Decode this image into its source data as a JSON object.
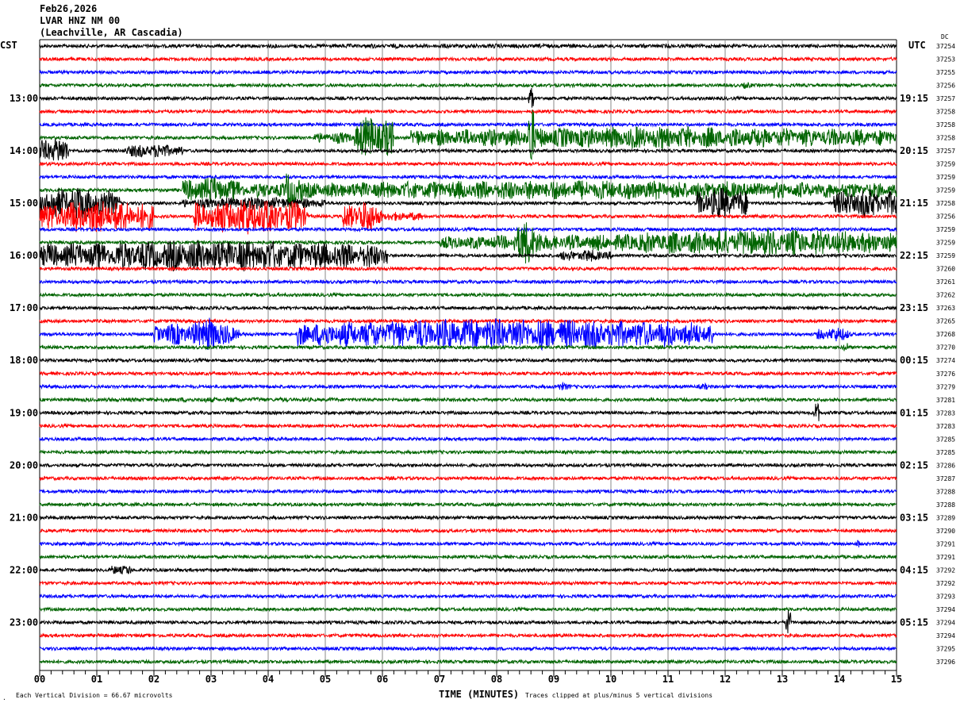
{
  "header": {
    "date": "Feb26,2026",
    "station": "LVAR HNZ NM 00",
    "location": "(Leachville, AR Cascadia)"
  },
  "left_timezone": "CST",
  "right_timezone": "UTC",
  "dc_header": "DC",
  "footer": {
    "scale_note": "Each Vertical Division =   66.67 microvolts",
    "xlabel": "TIME (MINUTES)",
    "clip_note": "Traces clipped at plus/minus 5 vertical divisions",
    "corner_mark": "."
  },
  "chart_data": {
    "type": "line",
    "subtype": "helicorder",
    "xlabel": "TIME (MINUTES)",
    "xlim": [
      0,
      15
    ],
    "x_ticks": [
      "00",
      "01",
      "02",
      "03",
      "04",
      "05",
      "06",
      "07",
      "08",
      "09",
      "10",
      "11",
      "12",
      "13",
      "14",
      "15"
    ],
    "minor_ticks_per_minute": 5,
    "grid": "vertical every minute",
    "trace_colors": [
      "#000000",
      "#ff0000",
      "#0000ff",
      "#006400"
    ],
    "left_hour_labels": [
      {
        "row": 4,
        "label": "13:00"
      },
      {
        "row": 8,
        "label": "14:00"
      },
      {
        "row": 12,
        "label": "15:00"
      },
      {
        "row": 16,
        "label": "16:00"
      },
      {
        "row": 20,
        "label": "17:00"
      },
      {
        "row": 24,
        "label": "18:00"
      },
      {
        "row": 28,
        "label": "19:00"
      },
      {
        "row": 32,
        "label": "20:00"
      },
      {
        "row": 36,
        "label": "21:00"
      },
      {
        "row": 40,
        "label": "22:00"
      },
      {
        "row": 44,
        "label": "23:00"
      }
    ],
    "right_hour_labels": [
      {
        "row": 4,
        "label": "19:15"
      },
      {
        "row": 8,
        "label": "20:15"
      },
      {
        "row": 12,
        "label": "21:15"
      },
      {
        "row": 16,
        "label": "22:15"
      },
      {
        "row": 20,
        "label": "23:15"
      },
      {
        "row": 24,
        "label": "00:15"
      },
      {
        "row": 28,
        "label": "01:15"
      },
      {
        "row": 32,
        "label": "02:15"
      },
      {
        "row": 36,
        "label": "03:15"
      },
      {
        "row": 40,
        "label": "04:15"
      },
      {
        "row": 44,
        "label": "05:15"
      }
    ],
    "dc_offsets": [
      "37254",
      "37253",
      "37255",
      "37256",
      "37257",
      "37258",
      "37258",
      "37258",
      "37257",
      "37259",
      "37259",
      "37259",
      "37258",
      "37256",
      "37259",
      "37259",
      "37259",
      "37260",
      "37261",
      "37262",
      "37263",
      "37265",
      "37268",
      "37270",
      "37274",
      "37276",
      "37279",
      "37281",
      "37283",
      "37283",
      "37285",
      "37285",
      "37286",
      "37287",
      "37288",
      "37288",
      "37289",
      "37290",
      "37291",
      "37291",
      "37292",
      "37292",
      "37293",
      "37294",
      "37294",
      "37294",
      "37295",
      "37296"
    ],
    "trace_count": 48,
    "background_noise_divisions": 0.12,
    "events": [
      {
        "row": 0,
        "start": 0,
        "end": 15,
        "amp": 0.18
      },
      {
        "row": 3,
        "start": 12.3,
        "end": 12.5,
        "amp": 0.3
      },
      {
        "row": 4,
        "start": 8.55,
        "end": 8.65,
        "amp": 1.0
      },
      {
        "row": 7,
        "start": 4.8,
        "end": 5.5,
        "amp": 0.5
      },
      {
        "row": 7,
        "start": 5.5,
        "end": 6.2,
        "amp": 1.8
      },
      {
        "row": 7,
        "start": 6.5,
        "end": 15,
        "amp": 0.9
      },
      {
        "row": 7,
        "start": 8.55,
        "end": 8.65,
        "amp": 3.5
      },
      {
        "row": 8,
        "start": 0,
        "end": 0.5,
        "amp": 1.2
      },
      {
        "row": 8,
        "start": 1.5,
        "end": 2.5,
        "amp": 0.6
      },
      {
        "row": 11,
        "start": 2.5,
        "end": 3.5,
        "amp": 1.1
      },
      {
        "row": 11,
        "start": 3.5,
        "end": 15,
        "amp": 0.8
      },
      {
        "row": 11,
        "start": 4.3,
        "end": 4.6,
        "amp": 1.8
      },
      {
        "row": 12,
        "start": 0,
        "end": 1.4,
        "amp": 1.4
      },
      {
        "row": 12,
        "start": 2.5,
        "end": 5.0,
        "amp": 0.5
      },
      {
        "row": 12,
        "start": 11.5,
        "end": 12.4,
        "amp": 1.3
      },
      {
        "row": 12,
        "start": 13.9,
        "end": 15,
        "amp": 1.2
      },
      {
        "row": 13,
        "start": 0,
        "end": 2.0,
        "amp": 1.4
      },
      {
        "row": 13,
        "start": 2.7,
        "end": 4.7,
        "amp": 1.5
      },
      {
        "row": 13,
        "start": 5.3,
        "end": 6.0,
        "amp": 1.3
      },
      {
        "row": 13,
        "start": 6.0,
        "end": 6.7,
        "amp": 0.4
      },
      {
        "row": 15,
        "start": 7.0,
        "end": 15,
        "amp": 0.7
      },
      {
        "row": 15,
        "start": 8.3,
        "end": 8.8,
        "amp": 1.8
      },
      {
        "row": 15,
        "start": 10.3,
        "end": 15,
        "amp": 1.1
      },
      {
        "row": 16,
        "start": 0,
        "end": 6.1,
        "amp": 1.3
      },
      {
        "row": 16,
        "start": 9.1,
        "end": 10.0,
        "amp": 0.5
      },
      {
        "row": 22,
        "start": 2.0,
        "end": 3.5,
        "amp": 1.0
      },
      {
        "row": 22,
        "start": 2.9,
        "end": 3.1,
        "amp": 2.2
      },
      {
        "row": 22,
        "start": 4.5,
        "end": 11.8,
        "amp": 1.3
      },
      {
        "row": 22,
        "start": 13.6,
        "end": 14.2,
        "amp": 0.6
      },
      {
        "row": 23,
        "start": 14.05,
        "end": 14.15,
        "amp": 0.6
      },
      {
        "row": 26,
        "start": 9.0,
        "end": 9.3,
        "amp": 0.3
      },
      {
        "row": 26,
        "start": 11.5,
        "end": 11.7,
        "amp": 0.3
      },
      {
        "row": 27,
        "start": 0.5,
        "end": 5.5,
        "amp": 0.2
      },
      {
        "row": 28,
        "start": 13.55,
        "end": 13.65,
        "amp": 0.9
      },
      {
        "row": 38,
        "start": 14.3,
        "end": 14.35,
        "amp": 0.4
      },
      {
        "row": 40,
        "start": 1.25,
        "end": 1.6,
        "amp": 0.5
      },
      {
        "row": 44,
        "start": 13.05,
        "end": 13.15,
        "amp": 1.0
      }
    ]
  }
}
